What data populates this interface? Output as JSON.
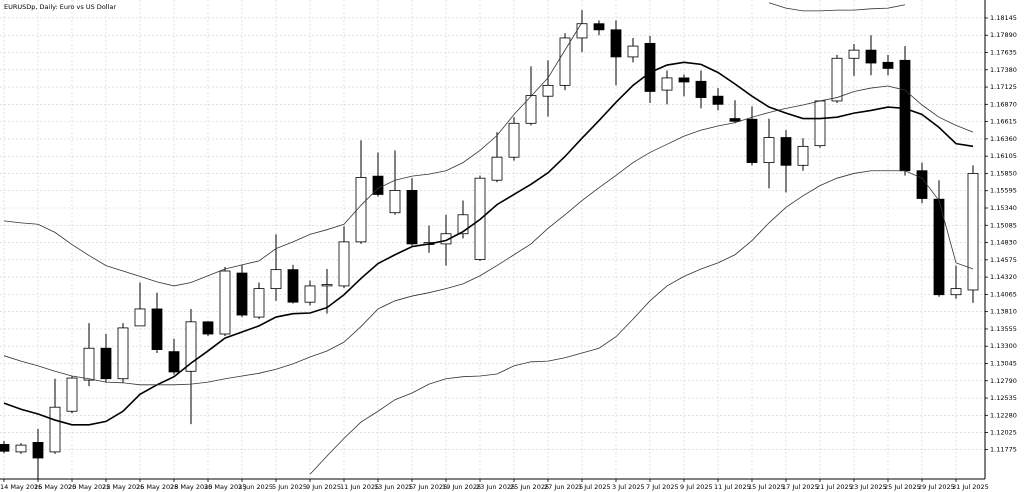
{
  "chart_data": {
    "type": "candlestick",
    "title": "EURUSDp, Daily:  Euro vs US Dollar",
    "x": [
      "14 May 2025",
      null,
      "16 May 2025",
      null,
      "20 May 2025",
      null,
      "22 May 2025",
      null,
      "26 May 2025",
      null,
      "28 May 2025",
      null,
      "30 May 2025",
      null,
      "3 Jun 2025",
      null,
      "5 Jun 2025",
      null,
      "9 Jun 2025",
      null,
      "11 Jun 2025",
      null,
      "13 Jun 2025",
      null,
      "17 Jun 2025",
      null,
      "19 Jun 2025",
      null,
      "23 Jun 2025",
      null,
      "25 Jun 2025",
      null,
      "27 Jun 2025",
      null,
      "1 Jul 2025",
      null,
      "3 Jul 2025",
      null,
      "7 Jul 2025",
      null,
      "9 Jul 2025",
      null,
      "11 Jul 2025",
      null,
      "15 Jul 2025",
      null,
      "17 Jul 2025",
      null,
      "21 Jul 2025",
      null,
      "23 Jul 2025",
      null,
      "25 Jul 2025",
      null,
      "29 Jul 2025",
      null,
      "31 Jul 2025",
      null
    ],
    "open": [
      1.1185,
      1.1174,
      1.1188,
      1.1174,
      1.1234,
      1.128,
      1.1327,
      1.1282,
      1.136,
      1.1385,
      1.1322,
      1.1293,
      1.1366,
      1.1348,
      1.1438,
      1.1373,
      1.1415,
      1.1443,
      1.1395,
      1.1419,
      1.1419,
      1.1484,
      1.1581,
      1.1527,
      1.156,
      1.148,
      1.1481,
      1.1496,
      1.1458,
      1.1575,
      1.1609,
      1.1659,
      1.1699,
      1.1715,
      1.1785,
      1.1806,
      1.1797,
      1.1757,
      1.1777,
      1.1708,
      1.1726,
      1.1721,
      1.1699,
      1.1666,
      1.1665,
      1.1601,
      1.1638,
      1.1597,
      1.1626,
      1.1692,
      1.1755,
      1.1767,
      1.1749,
      1.1752,
      1.1589,
      1.1547,
      1.1406,
      1.1413
    ],
    "high": [
      1.119,
      1.1187,
      1.1208,
      1.1282,
      1.1286,
      1.1364,
      1.1348,
      1.1364,
      1.1424,
      1.1409,
      1.1341,
      1.1385,
      1.1367,
      1.1447,
      1.145,
      1.1424,
      1.1495,
      1.145,
      1.1427,
      1.1444,
      1.1507,
      1.1634,
      1.1616,
      1.1619,
      1.1578,
      1.1508,
      1.1524,
      1.1545,
      1.1582,
      1.1646,
      1.1668,
      1.1743,
      1.1752,
      1.1792,
      1.1826,
      1.1811,
      1.1811,
      1.1785,
      1.1788,
      1.1737,
      1.1731,
      1.1737,
      1.1711,
      1.1693,
      1.1684,
      1.1666,
      1.1649,
      1.1637,
      1.1693,
      1.176,
      1.1776,
      1.1789,
      1.176,
      1.1773,
      1.1601,
      1.1575,
      1.1449,
      1.1597
    ],
    "low": [
      1.1172,
      1.1171,
      1.1134,
      1.1171,
      1.1231,
      1.1271,
      1.1276,
      1.1276,
      1.136,
      1.132,
      1.1288,
      1.1215,
      1.1345,
      1.1345,
      1.1373,
      1.137,
      1.1397,
      1.1393,
      1.139,
      1.1378,
      1.1416,
      1.1481,
      1.1551,
      1.1524,
      1.1477,
      1.1468,
      1.1449,
      1.1489,
      1.1456,
      1.1572,
      1.1604,
      1.1656,
      1.1669,
      1.1708,
      1.1764,
      1.1789,
      1.1715,
      1.1749,
      1.1689,
      1.1687,
      1.1699,
      1.1681,
      1.1678,
      1.1659,
      1.1597,
      1.1563,
      1.1557,
      1.1589,
      1.1623,
      1.1689,
      1.1729,
      1.173,
      1.173,
      1.1582,
      1.1541,
      1.1403,
      1.14,
      1.1394
    ],
    "close": [
      1.1175,
      1.1184,
      1.1165,
      1.124,
      1.1283,
      1.1327,
      1.1282,
      1.1357,
      1.1385,
      1.1325,
      1.1292,
      1.1366,
      1.1348,
      1.1441,
      1.1376,
      1.1415,
      1.1443,
      1.1395,
      1.1419,
      1.1421,
      1.1484,
      1.1579,
      1.1554,
      1.156,
      1.1481,
      1.1483,
      1.1496,
      1.1524,
      1.1578,
      1.1609,
      1.1659,
      1.17,
      1.1715,
      1.1785,
      1.1806,
      1.1797,
      1.1757,
      1.1773,
      1.1706,
      1.1726,
      1.172,
      1.1697,
      1.1687,
      1.1662,
      1.1601,
      1.1638,
      1.1597,
      1.1625,
      1.1692,
      1.1755,
      1.1767,
      1.1748,
      1.174,
      1.1589,
      1.1548,
      1.1406,
      1.1415,
      1.1585
    ],
    "up_color": "#ffffff",
    "down_color": "#000000",
    "wick_color": "#000000",
    "lines": [
      {
        "color": "#000000",
        "width": 1.6,
        "values": [
          1.1246,
          1.1237,
          1.123,
          1.1221,
          1.1214,
          1.1214,
          1.1219,
          1.1234,
          1.1259,
          1.1273,
          1.1285,
          1.1305,
          1.1323,
          1.1342,
          1.1351,
          1.136,
          1.1373,
          1.1378,
          1.1379,
          1.1387,
          1.1406,
          1.143,
          1.1452,
          1.1465,
          1.1477,
          1.1481,
          1.1486,
          1.1499,
          1.1517,
          1.1539,
          1.1554,
          1.1569,
          1.1586,
          1.161,
          1.1637,
          1.1663,
          1.169,
          1.1715,
          1.1734,
          1.1745,
          1.1749,
          1.1746,
          1.1734,
          1.1717,
          1.1699,
          1.1683,
          1.1674,
          1.1666,
          1.1666,
          1.1668,
          1.1674,
          1.1678,
          1.1683,
          1.1681,
          1.1672,
          1.1653,
          1.1629,
          1.1625
        ]
      },
      {
        "color": "#333333",
        "width": 0.8,
        "values": [
          1.1316,
          1.1308,
          1.1301,
          1.1293,
          1.1286,
          1.1282,
          1.1277,
          1.1276,
          1.1273,
          1.1273,
          1.1273,
          1.1274,
          1.1277,
          1.1282,
          1.1286,
          1.129,
          1.1296,
          1.1304,
          1.1314,
          1.1323,
          1.1336,
          1.1359,
          1.1385,
          1.1397,
          1.1404,
          1.1409,
          1.1415,
          1.1422,
          1.1434,
          1.1449,
          1.1465,
          1.1481,
          1.1504,
          1.1524,
          1.1545,
          1.1564,
          1.1582,
          1.1601,
          1.1616,
          1.1628,
          1.164,
          1.1649,
          1.1655,
          1.166,
          1.1668,
          1.1675,
          1.1681,
          1.1686,
          1.1692,
          1.1697,
          1.1706,
          1.1711,
          1.1714,
          1.1708,
          1.1686,
          1.1668,
          1.1656,
          1.1646
        ]
      },
      {
        "color": "#333333",
        "width": 0.8,
        "values": [
          1.1515,
          1.1512,
          1.151,
          1.1498,
          1.148,
          1.1464,
          1.1449,
          1.1441,
          1.1433,
          1.1425,
          1.1419,
          1.1424,
          1.1434,
          1.1444,
          1.145,
          1.1456,
          1.1474,
          1.1484,
          1.1495,
          1.1502,
          1.151,
          1.1538,
          1.1563,
          1.1575,
          1.1581,
          1.1584,
          1.1589,
          1.1601,
          1.1619,
          1.1641,
          1.1672,
          1.1699,
          1.1726,
          1.1767,
          1.1808,
          null,
          null,
          null,
          null,
          null,
          null,
          null,
          null,
          null,
          null,
          1.1837,
          1.1829,
          1.1825,
          1.1825,
          1.1826,
          1.1826,
          1.1828,
          1.1829,
          1.1834,
          null,
          null,
          null,
          null
        ]
      },
      {
        "color": "#333333",
        "width": 0.8,
        "values": [
          null,
          null,
          null,
          null,
          null,
          null,
          null,
          null,
          null,
          null,
          null,
          null,
          null,
          null,
          null,
          null,
          null,
          null,
          1.1141,
          1.1168,
          1.1194,
          1.1218,
          1.1234,
          1.1251,
          1.1261,
          1.1274,
          1.1282,
          1.1285,
          1.1286,
          1.1289,
          1.1301,
          1.1307,
          1.1308,
          1.1313,
          1.132,
          1.1327,
          1.1344,
          1.137,
          1.1397,
          1.1419,
          1.1433,
          1.1444,
          1.1453,
          1.1465,
          1.1486,
          1.1512,
          1.1535,
          1.1552,
          1.1567,
          1.1578,
          1.1585,
          1.1589,
          1.1589,
          1.1589,
          1.1578,
          1.1545,
          1.1453,
          1.1444
        ]
      }
    ],
    "ylim": [
      1.1134,
      1.1841
    ],
    "yticks": [
      1.18145,
      {
        "value": 1.1789,
        "label": "1.17890"
      },
      1.17635,
      {
        "value": 1.1738,
        "label": "1.17380"
      },
      1.17125,
      {
        "value": 1.1687,
        "label": "1.16870"
      },
      1.16615,
      {
        "value": 1.1636,
        "label": "1.16360"
      },
      1.16105,
      {
        "value": 1.1585,
        "label": "1.15850"
      },
      1.15595,
      {
        "value": 1.1534,
        "label": "1.15340"
      },
      1.15085,
      {
        "value": 1.1483,
        "label": "1.14830"
      },
      1.14575,
      {
        "value": 1.1432,
        "label": "1.14320"
      },
      1.14065,
      {
        "value": 1.1381,
        "label": "1.13810"
      },
      1.13555,
      {
        "value": 1.133,
        "label": "1.13300"
      },
      1.13045,
      {
        "value": 1.1279,
        "label": "1.12790"
      },
      1.12535,
      {
        "value": 1.1228,
        "label": "1.12280"
      },
      1.12025,
      1.11775
    ],
    "grid": true,
    "grid_color": "#d0d0d0"
  }
}
